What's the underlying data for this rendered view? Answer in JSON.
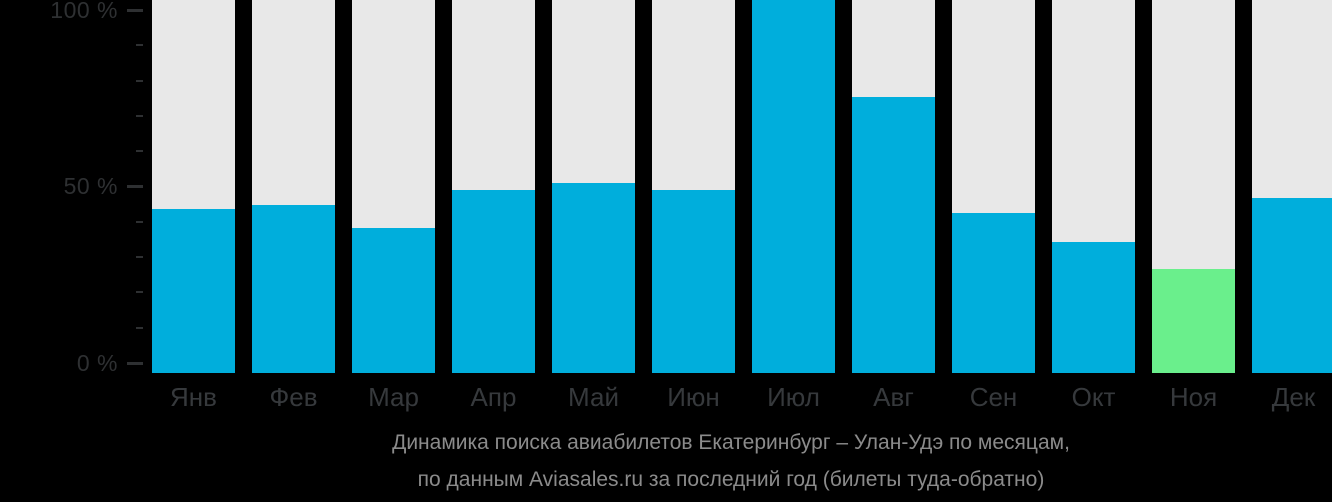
{
  "chart_data": {
    "type": "bar",
    "title": "Динамика поиска авиабилетов Екатеринбург – Улан-Удэ по месяцам,",
    "subtitle": "по данным Aviasales.ru за последний год (билеты туда-обратно)",
    "categories": [
      "Янв",
      "Фев",
      "Мар",
      "Апр",
      "Май",
      "Июн",
      "Июл",
      "Авг",
      "Сен",
      "Окт",
      "Ноя",
      "Дек"
    ],
    "values": [
      44,
      45,
      39,
      49,
      51,
      49,
      100,
      74,
      43,
      35,
      28,
      47
    ],
    "unit": "%",
    "ylim": [
      0,
      100
    ],
    "y_tick_labels": [
      "0 %",
      "50 %",
      "100 %"
    ],
    "y_major_ticks": [
      0,
      50,
      100
    ],
    "y_minor_tick_step": 10,
    "grid": false,
    "legend": "none",
    "highlight_index": 10,
    "colors": {
      "bar": "#00AEDC",
      "highlight": "#6AEF8C",
      "track": "#E8E8E8",
      "background": "#000000",
      "axis_text": "#2E3032",
      "category_text": "#36393C",
      "caption_text": "#8B8B8B"
    }
  }
}
